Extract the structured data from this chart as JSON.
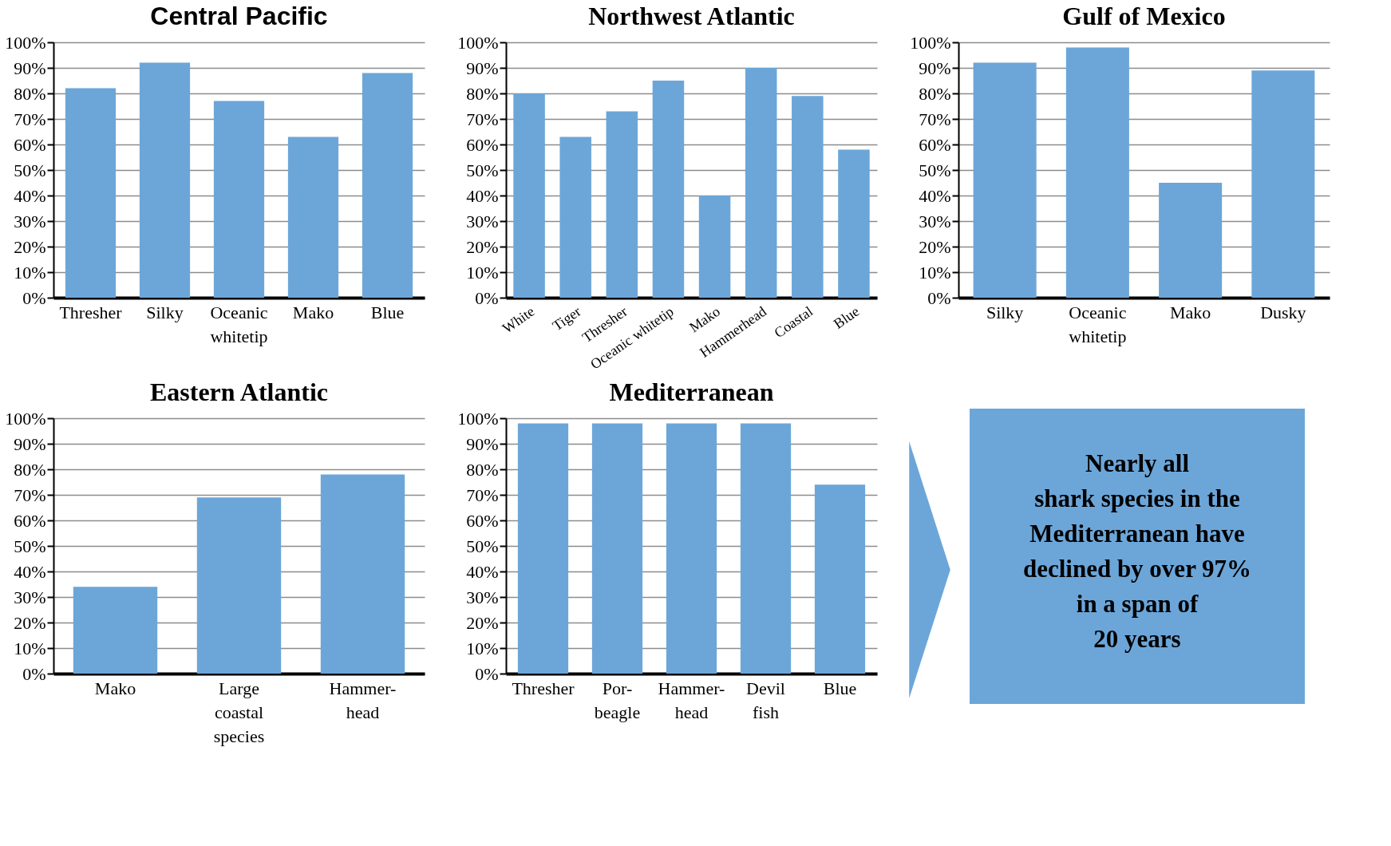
{
  "chart_data": [
    {
      "type": "bar",
      "title": "Central Pacific",
      "categories": [
        "Thresher",
        "Silky",
        "Oceanic\nwhitetip",
        "Mako",
        "Blue"
      ],
      "values": [
        82,
        92,
        77,
        63,
        88
      ],
      "color": "#6ca6d9",
      "ylim": [
        0,
        100
      ],
      "yticks": [
        {
          "value": 0,
          "label": "0%"
        },
        {
          "value": 10,
          "label": "10%"
        },
        {
          "value": 20,
          "label": "20%"
        },
        {
          "value": 30,
          "label": "30%"
        },
        {
          "value": 40,
          "label": "40%"
        },
        {
          "value": 50,
          "label": "50%"
        },
        {
          "value": 60,
          "label": "60%"
        },
        {
          "value": 70,
          "label": "70%"
        },
        {
          "value": 80,
          "label": "80%"
        },
        {
          "value": 90,
          "label": "90%"
        },
        {
          "value": 100,
          "label": "100%"
        }
      ],
      "grid": "y"
    },
    {
      "type": "bar",
      "title": "Northwest Atlantic",
      "categories": [
        "White",
        "Tiger",
        "Thresher",
        "Oceanic whitetip",
        "Mako",
        "Hammerhead",
        "Coastal",
        "Blue"
      ],
      "values": [
        80,
        63,
        73,
        85,
        40,
        90,
        79,
        58
      ],
      "color": "#6ca6d9",
      "ylim": [
        0,
        100
      ],
      "yticks": [
        {
          "value": 0,
          "label": "0%"
        },
        {
          "value": 10,
          "label": "10%"
        },
        {
          "value": 20,
          "label": "20%"
        },
        {
          "value": 30,
          "label": "30%"
        },
        {
          "value": 40,
          "label": "40%"
        },
        {
          "value": 50,
          "label": "50%"
        },
        {
          "value": 60,
          "label": "60%"
        },
        {
          "value": 70,
          "label": "70%"
        },
        {
          "value": 80,
          "label": "80%"
        },
        {
          "value": 90,
          "label": "90%"
        },
        {
          "value": 100,
          "label": "100%"
        }
      ],
      "grid": "y"
    },
    {
      "type": "bar",
      "title": "Gulf of Mexico",
      "categories": [
        "Silky",
        "Oceanic\nwhitetip",
        "Mako",
        "Dusky"
      ],
      "values": [
        92,
        98,
        45,
        89
      ],
      "color": "#6ca6d9",
      "ylim": [
        0,
        100
      ],
      "yticks": [
        {
          "value": 0,
          "label": "0%"
        },
        {
          "value": 10,
          "label": "10%"
        },
        {
          "value": 20,
          "label": "20%"
        },
        {
          "value": 30,
          "label": "30%"
        },
        {
          "value": 40,
          "label": "40%"
        },
        {
          "value": 50,
          "label": "50%"
        },
        {
          "value": 60,
          "label": "60%"
        },
        {
          "value": 70,
          "label": "70%"
        },
        {
          "value": 80,
          "label": "80%"
        },
        {
          "value": 90,
          "label": "90%"
        },
        {
          "value": 100,
          "label": "100%"
        }
      ],
      "grid": "y"
    },
    {
      "type": "bar",
      "title": "Eastern Atlantic",
      "categories": [
        "Mako",
        "Large\ncoastal\nspecies",
        "Hammer-\nhead"
      ],
      "values": [
        34,
        69,
        78
      ],
      "color": "#6ca6d9",
      "ylim": [
        0,
        100
      ],
      "yticks": [
        {
          "value": 0,
          "label": "0%"
        },
        {
          "value": 10,
          "label": "10%"
        },
        {
          "value": 20,
          "label": "20%"
        },
        {
          "value": 30,
          "label": "30%"
        },
        {
          "value": 40,
          "label": "40%"
        },
        {
          "value": 50,
          "label": "50%"
        },
        {
          "value": 60,
          "label": "60%"
        },
        {
          "value": 70,
          "label": "70%"
        },
        {
          "value": 80,
          "label": "80%"
        },
        {
          "value": 90,
          "label": "90%"
        },
        {
          "value": 100,
          "label": "100%"
        }
      ],
      "grid": "y"
    },
    {
      "type": "bar",
      "title": "Mediterranean",
      "categories": [
        "Thresher",
        "Por-\nbeagle",
        "Hammer-\nhead",
        "Devil\nfish",
        "Blue"
      ],
      "values": [
        98,
        98,
        98,
        98,
        74
      ],
      "color": "#6ca6d9",
      "ylim": [
        0,
        100
      ],
      "yticks": [
        {
          "value": 0,
          "label": "0%"
        },
        {
          "value": 10,
          "label": "10%"
        },
        {
          "value": 20,
          "label": "20%"
        },
        {
          "value": 30,
          "label": "30%"
        },
        {
          "value": 40,
          "label": "40%"
        },
        {
          "value": 50,
          "label": "50%"
        },
        {
          "value": 60,
          "label": "60%"
        },
        {
          "value": 70,
          "label": "70%"
        },
        {
          "value": 80,
          "label": "80%"
        },
        {
          "value": 90,
          "label": "90%"
        },
        {
          "value": 100,
          "label": "100%"
        }
      ],
      "grid": "y"
    },
    {
      "type": "other",
      "annotations": [
        "Nearly all\nshark species in the\nMediterranean have\ndeclined by over 97%\nin a span of\n20 years"
      ],
      "color": "#6ca6d9"
    }
  ]
}
